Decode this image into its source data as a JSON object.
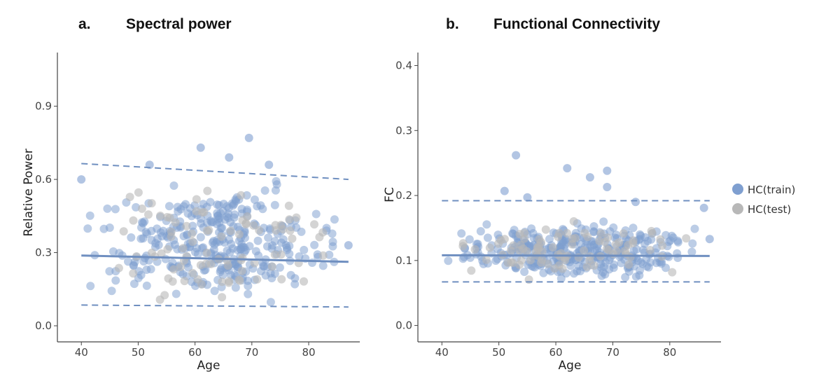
{
  "legend": [
    {
      "label": "HC(train)",
      "color": "#7f9fd0"
    },
    {
      "label": "HC(test)",
      "color": "#b8b8b8"
    }
  ],
  "regression_color": "#6f8fc0",
  "chart_data": [
    {
      "type": "scatter",
      "panel_letter": "a.",
      "title": "Spectral power",
      "xlabel": "Age",
      "ylabel": "Relative Power",
      "xlim": [
        38,
        88.5
      ],
      "ylim": [
        -0.02,
        1.12
      ],
      "xticks": [
        40,
        50,
        60,
        70,
        80
      ],
      "yticks": [
        0.0,
        0.3,
        0.6,
        0.9
      ],
      "ytick_labels": [
        "0.0",
        "0.3",
        "0.6",
        "0.9"
      ],
      "grid": false,
      "seed": 11,
      "cloud": {
        "n_train": 340,
        "n_test": 90,
        "x_min": 40,
        "x_max": 86,
        "x_peak": 63,
        "y_low": 0.06,
        "y_high": 0.62,
        "outliers": [
          [
            61,
            0.73
          ],
          [
            69.5,
            0.77
          ],
          [
            87,
            0.33
          ],
          [
            52,
            0.66
          ],
          [
            66,
            0.69
          ],
          [
            73,
            0.66
          ],
          [
            40,
            0.6
          ]
        ]
      },
      "lines": [
        {
          "name": "fit",
          "style": "solid",
          "points": [
            [
              40,
              0.288
            ],
            [
              87,
              0.262
            ]
          ]
        },
        {
          "name": "upper",
          "style": "dashed",
          "points": [
            [
              40,
              0.665
            ],
            [
              87,
              0.6
            ]
          ]
        },
        {
          "name": "lower",
          "style": "dashed",
          "points": [
            [
              40,
              0.085
            ],
            [
              87,
              0.077
            ]
          ]
        }
      ]
    },
    {
      "type": "scatter",
      "panel_letter": "b.",
      "title": "Functional Connectivity",
      "xlabel": "Age",
      "ylabel": "FC",
      "xlim": [
        38,
        88.5
      ],
      "ylim": [
        -0.008,
        0.42
      ],
      "xticks": [
        40,
        50,
        60,
        70,
        80
      ],
      "yticks": [
        0.0,
        0.1,
        0.2,
        0.3,
        0.4
      ],
      "ytick_labels": [
        "0.0",
        "0.1",
        "0.2",
        "0.3",
        "0.4"
      ],
      "grid": false,
      "seed": 23,
      "cloud": {
        "n_train": 340,
        "n_test": 90,
        "x_min": 40,
        "x_max": 86,
        "x_peak": 64,
        "y_low": 0.066,
        "y_high": 0.165,
        "outliers": [
          [
            53,
            0.262
          ],
          [
            62,
            0.242
          ],
          [
            69,
            0.238
          ],
          [
            66,
            0.228
          ],
          [
            51,
            0.207
          ],
          [
            69,
            0.213
          ],
          [
            55,
            0.197
          ],
          [
            87,
            0.133
          ],
          [
            86,
            0.181
          ],
          [
            74,
            0.19
          ]
        ]
      },
      "lines": [
        {
          "name": "fit",
          "style": "solid",
          "points": [
            [
              40,
              0.108
            ],
            [
              87,
              0.107
            ]
          ]
        },
        {
          "name": "upper",
          "style": "dashed",
          "points": [
            [
              40,
              0.192
            ],
            [
              87,
              0.192
            ]
          ]
        },
        {
          "name": "lower",
          "style": "dashed",
          "points": [
            [
              40,
              0.067
            ],
            [
              87,
              0.067
            ]
          ]
        }
      ]
    }
  ]
}
